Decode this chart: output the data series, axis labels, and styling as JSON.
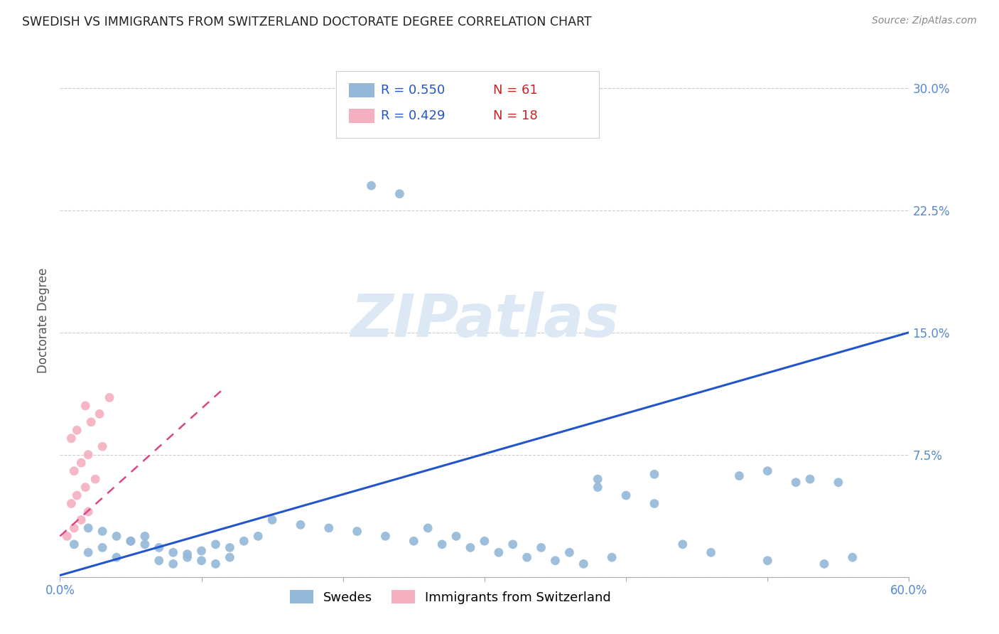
{
  "title": "SWEDISH VS IMMIGRANTS FROM SWITZERLAND DOCTORATE DEGREE CORRELATION CHART",
  "source": "Source: ZipAtlas.com",
  "ylabel": "Doctorate Degree",
  "xlim": [
    0.0,
    0.6
  ],
  "ylim": [
    0.0,
    0.315
  ],
  "xticks": [
    0.0,
    0.1,
    0.2,
    0.3,
    0.4,
    0.5,
    0.6
  ],
  "xticklabels": [
    "0.0%",
    "",
    "",
    "",
    "",
    "",
    "60.0%"
  ],
  "yticks_right": [
    0.075,
    0.15,
    0.225,
    0.3
  ],
  "ytick_labels_right": [
    "7.5%",
    "15.0%",
    "22.5%",
    "30.0%"
  ],
  "blue_color": "#93b8d8",
  "pink_color": "#f4afc0",
  "blue_line_color": "#2255cc",
  "pink_line_color": "#dd4488",
  "grid_color": "#cccccc",
  "title_color": "#222222",
  "tick_color": "#5588cc",
  "watermark_color": "#dde8f5",
  "blue_R": "0.550",
  "blue_N": "61",
  "pink_R": "0.429",
  "pink_N": "18",
  "blue_line": [
    0.0,
    0.6,
    0.001,
    0.15
  ],
  "pink_line": [
    0.0,
    0.115,
    0.025,
    0.115
  ],
  "bottom_legend_labels": [
    "Swedes",
    "Immigrants from Switzerland"
  ],
  "blue_scatter_x": [
    0.01,
    0.02,
    0.03,
    0.04,
    0.05,
    0.06,
    0.07,
    0.08,
    0.09,
    0.1,
    0.11,
    0.12,
    0.13,
    0.14,
    0.02,
    0.03,
    0.04,
    0.05,
    0.06,
    0.07,
    0.08,
    0.09,
    0.1,
    0.11,
    0.12,
    0.15,
    0.17,
    0.19,
    0.21,
    0.23,
    0.25,
    0.27,
    0.29,
    0.31,
    0.33,
    0.35,
    0.37,
    0.39,
    0.22,
    0.24,
    0.26,
    0.28,
    0.3,
    0.32,
    0.34,
    0.36,
    0.38,
    0.4,
    0.42,
    0.44,
    0.46,
    0.48,
    0.5,
    0.52,
    0.54,
    0.56,
    0.38,
    0.42,
    0.5,
    0.53,
    0.55
  ],
  "blue_scatter_y": [
    0.02,
    0.015,
    0.018,
    0.012,
    0.022,
    0.025,
    0.01,
    0.008,
    0.014,
    0.016,
    0.02,
    0.018,
    0.022,
    0.025,
    0.03,
    0.028,
    0.025,
    0.022,
    0.02,
    0.018,
    0.015,
    0.012,
    0.01,
    0.008,
    0.012,
    0.035,
    0.032,
    0.03,
    0.028,
    0.025,
    0.022,
    0.02,
    0.018,
    0.015,
    0.012,
    0.01,
    0.008,
    0.012,
    0.24,
    0.235,
    0.03,
    0.025,
    0.022,
    0.02,
    0.018,
    0.015,
    0.055,
    0.05,
    0.045,
    0.02,
    0.015,
    0.062,
    0.01,
    0.058,
    0.008,
    0.012,
    0.06,
    0.063,
    0.065,
    0.06,
    0.058
  ],
  "pink_scatter_x": [
    0.005,
    0.01,
    0.015,
    0.02,
    0.008,
    0.012,
    0.018,
    0.025,
    0.01,
    0.015,
    0.02,
    0.03,
    0.008,
    0.012,
    0.022,
    0.028,
    0.018,
    0.035
  ],
  "pink_scatter_y": [
    0.025,
    0.03,
    0.035,
    0.04,
    0.045,
    0.05,
    0.055,
    0.06,
    0.065,
    0.07,
    0.075,
    0.08,
    0.085,
    0.09,
    0.095,
    0.1,
    0.105,
    0.11
  ]
}
